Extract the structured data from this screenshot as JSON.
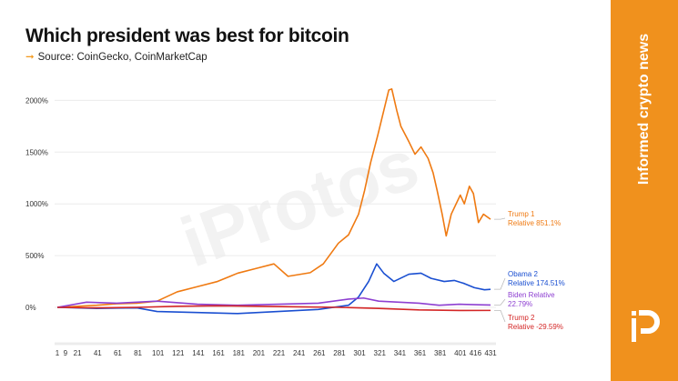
{
  "title": "Which president was best for bitcoin",
  "subtitle": "Source: CoinGecko, CoinMarketCap",
  "watermark": "iProtos",
  "side_panel": {
    "tagline": "Informed crypto news",
    "logo": "iP",
    "color": "#f0911d"
  },
  "chart_data": {
    "type": "line",
    "title": "Which president was best for bitcoin",
    "xlabel": "",
    "ylabel": "",
    "x_ticks": [
      1,
      9,
      21,
      41,
      61,
      81,
      101,
      121,
      141,
      161,
      181,
      201,
      221,
      241,
      261,
      281,
      301,
      321,
      341,
      361,
      381,
      401,
      416,
      431
    ],
    "y_ticks": [
      0,
      500,
      1000,
      1500,
      2000
    ],
    "y_tick_labels": [
      "0%",
      "500%",
      "1000%",
      "1500%",
      "2000%"
    ],
    "xlim": [
      1,
      431
    ],
    "ylim": [
      -300,
      2150
    ],
    "grid": true,
    "legend": "right-end labels",
    "series": [
      {
        "name": "Trump 1",
        "label": [
          "Trump 1",
          "Relative 851.1%"
        ],
        "color": "#ef7a12",
        "points": [
          [
            1,
            0
          ],
          [
            20,
            10
          ],
          [
            40,
            20
          ],
          [
            60,
            35
          ],
          [
            80,
            40
          ],
          [
            100,
            60
          ],
          [
            120,
            150
          ],
          [
            140,
            200
          ],
          [
            160,
            250
          ],
          [
            180,
            330
          ],
          [
            200,
            380
          ],
          [
            216,
            420
          ],
          [
            230,
            300
          ],
          [
            252,
            335
          ],
          [
            265,
            420
          ],
          [
            280,
            620
          ],
          [
            290,
            700
          ],
          [
            300,
            900
          ],
          [
            306,
            1130
          ],
          [
            312,
            1400
          ],
          [
            319,
            1660
          ],
          [
            325,
            1900
          ],
          [
            330,
            2100
          ],
          [
            333,
            2110
          ],
          [
            338,
            1900
          ],
          [
            342,
            1750
          ],
          [
            350,
            1600
          ],
          [
            356,
            1480
          ],
          [
            362,
            1550
          ],
          [
            369,
            1440
          ],
          [
            374,
            1300
          ],
          [
            378,
            1130
          ],
          [
            383,
            900
          ],
          [
            387,
            690
          ],
          [
            392,
            900
          ],
          [
            401,
            1085
          ],
          [
            405,
            1000
          ],
          [
            410,
            1170
          ],
          [
            414,
            1100
          ],
          [
            419,
            820
          ],
          [
            424,
            900
          ],
          [
            431,
            851.1
          ]
        ]
      },
      {
        "name": "Obama 2",
        "label": [
          "Obama 2",
          "Relative 174.51%"
        ],
        "color": "#1a4fd1",
        "points": [
          [
            1,
            0
          ],
          [
            40,
            -10
          ],
          [
            80,
            -5
          ],
          [
            100,
            -40
          ],
          [
            140,
            -50
          ],
          [
            180,
            -60
          ],
          [
            220,
            -40
          ],
          [
            260,
            -20
          ],
          [
            290,
            20
          ],
          [
            300,
            100
          ],
          [
            310,
            250
          ],
          [
            318,
            420
          ],
          [
            325,
            330
          ],
          [
            335,
            250
          ],
          [
            350,
            320
          ],
          [
            362,
            330
          ],
          [
            372,
            280
          ],
          [
            385,
            250
          ],
          [
            395,
            260
          ],
          [
            405,
            230
          ],
          [
            415,
            190
          ],
          [
            425,
            170
          ],
          [
            431,
            174.51
          ]
        ]
      },
      {
        "name": "Biden",
        "label": [
          "Biden Relative",
          "22.79%"
        ],
        "color": "#8d3fd1",
        "points": [
          [
            1,
            0
          ],
          [
            30,
            50
          ],
          [
            60,
            40
          ],
          [
            100,
            60
          ],
          [
            140,
            30
          ],
          [
            180,
            20
          ],
          [
            220,
            30
          ],
          [
            260,
            40
          ],
          [
            290,
            80
          ],
          [
            305,
            90
          ],
          [
            320,
            60
          ],
          [
            340,
            50
          ],
          [
            360,
            40
          ],
          [
            380,
            20
          ],
          [
            400,
            30
          ],
          [
            420,
            25
          ],
          [
            431,
            22.79
          ]
        ]
      },
      {
        "name": "Trump 2",
        "label": [
          "Trump 2",
          "Relative -29.59%"
        ],
        "color": "#d42626",
        "points": [
          [
            1,
            0
          ],
          [
            40,
            -5
          ],
          [
            80,
            0
          ],
          [
            120,
            10
          ],
          [
            160,
            15
          ],
          [
            200,
            10
          ],
          [
            240,
            5
          ],
          [
            280,
            0
          ],
          [
            320,
            -10
          ],
          [
            360,
            -25
          ],
          [
            400,
            -30
          ],
          [
            431,
            -29.59
          ]
        ]
      }
    ]
  }
}
